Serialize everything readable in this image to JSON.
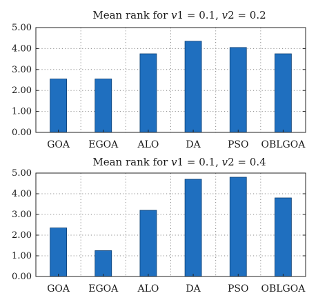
{
  "chart_data": [
    {
      "type": "bar",
      "title": "Mean rank for v1 = 0.1, v2 = 0.2",
      "categories": [
        "GOA",
        "EGOA",
        "ALO",
        "DA",
        "PSO",
        "OBLGOA"
      ],
      "values": [
        2.55,
        2.55,
        3.75,
        4.35,
        4.05,
        3.75
      ],
      "ylim": [
        0,
        5
      ],
      "yticks": [
        "0.00",
        "1.00",
        "2.00",
        "3.00",
        "4.00",
        "5.00"
      ],
      "grid": true,
      "color": "#1f6fbf"
    },
    {
      "type": "bar",
      "title": "Mean rank for v1 = 0.1, v2 = 0.4",
      "categories": [
        "GOA",
        "EGOA",
        "ALO",
        "DA",
        "PSO",
        "OBLGOA"
      ],
      "values": [
        2.35,
        1.25,
        3.2,
        4.7,
        4.8,
        3.8
      ],
      "ylim": [
        0,
        5
      ],
      "yticks": [
        "0.00",
        "1.00",
        "2.00",
        "3.00",
        "4.00",
        "5.00"
      ],
      "grid": true,
      "color": "#1f6fbf"
    }
  ]
}
